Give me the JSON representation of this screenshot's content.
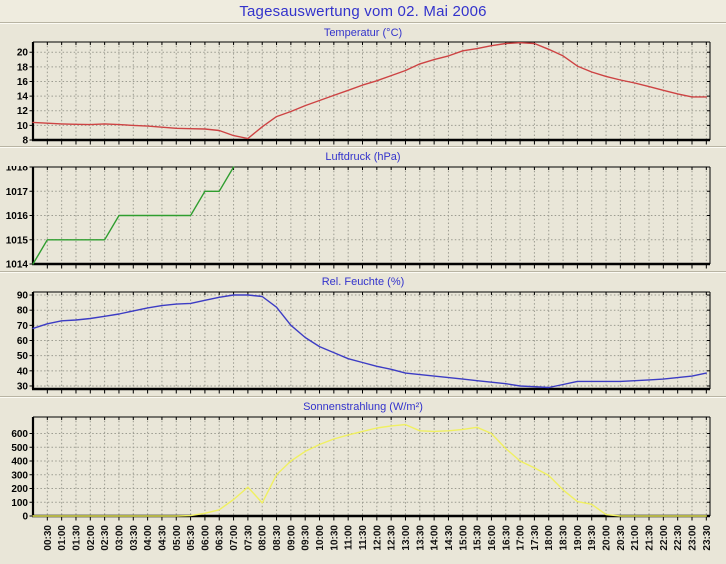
{
  "page": {
    "title": "Tagesauswertung vom 02. Mai 2006"
  },
  "colors": {
    "title_blue": "#3333cc",
    "background": "#e9e6d8",
    "header_background": "#efecdf",
    "grid": "#9b9b90",
    "axis": "#000000",
    "temperature_line": "#cd4343",
    "pressure_line": "#2f9e2f",
    "humidity_line": "#3c3cc4",
    "radiation_line": "#f0f060"
  },
  "x_axis": {
    "start_label": "00:30",
    "end_label": "23:30",
    "labels": [
      "00:30",
      "01:00",
      "01:30",
      "02:00",
      "02:30",
      "03:00",
      "03:30",
      "04:00",
      "04:30",
      "05:00",
      "05:30",
      "06:00",
      "06:30",
      "07:00",
      "07:30",
      "08:00",
      "08:30",
      "09:00",
      "09:30",
      "10:00",
      "10:30",
      "11:00",
      "11:30",
      "12:00",
      "12:30",
      "13:00",
      "13:30",
      "14:00",
      "14:30",
      "15:00",
      "15:30",
      "16:00",
      "16:30",
      "17:00",
      "17:30",
      "18:00",
      "18:30",
      "19:00",
      "19:30",
      "20:00",
      "20:30",
      "21:00",
      "21:30",
      "22:00",
      "22:30",
      "23:00",
      "23:30"
    ]
  },
  "chart_data": [
    {
      "type": "line",
      "title": "Temperatur (°C)",
      "unit": "°C",
      "color": "#cd4343",
      "y_ticks": [
        8,
        10,
        12,
        14,
        16,
        18,
        20
      ],
      "ylim": [
        8,
        21.4
      ],
      "x_start": "00:00",
      "x_step_minutes": 30,
      "values": [
        10.4,
        10.3,
        10.2,
        10.15,
        10.1,
        10.2,
        10.1,
        10.0,
        9.9,
        9.75,
        9.6,
        9.55,
        9.5,
        9.3,
        8.6,
        8.2,
        9.8,
        11.2,
        11.9,
        12.7,
        13.4,
        14.1,
        14.8,
        15.5,
        16.1,
        16.8,
        17.5,
        18.4,
        19.0,
        19.5,
        20.2,
        20.5,
        20.9,
        21.2,
        21.3,
        21.2,
        20.4,
        19.5,
        18.1,
        17.3,
        16.7,
        16.2,
        15.8,
        15.3,
        14.8,
        14.3,
        13.9,
        13.9
      ]
    },
    {
      "type": "line",
      "title": "Luftdruck (hPa)",
      "unit": "hPa",
      "color": "#2f9e2f",
      "y_ticks": [
        1014,
        1015,
        1016,
        1017,
        1018
      ],
      "ylim": [
        1014,
        1018
      ],
      "x_start": "00:00",
      "x_step_minutes": 30,
      "values": [
        1014,
        1015,
        1015,
        1015,
        1015,
        1015,
        1016,
        1016,
        1016,
        1016,
        1016,
        1016,
        1017,
        1017,
        1018,
        null,
        null,
        null,
        null,
        null,
        null,
        null,
        null,
        null,
        null,
        null,
        null,
        null,
        null,
        null,
        null,
        null,
        null,
        null,
        null,
        null,
        null,
        null,
        null,
        null,
        null,
        null,
        null,
        null,
        null,
        null,
        null,
        null
      ]
    },
    {
      "type": "line",
      "title": "Rel. Feuchte (%)",
      "unit": "%",
      "color": "#3c3cc4",
      "y_ticks": [
        30,
        40,
        50,
        60,
        70,
        80,
        90
      ],
      "ylim": [
        28,
        92
      ],
      "x_start": "00:00",
      "x_step_minutes": 30,
      "values": [
        68,
        71,
        73,
        73.5,
        74.5,
        76,
        77.5,
        79.5,
        81.5,
        83,
        84,
        84.5,
        86.5,
        88.5,
        90,
        90,
        89,
        82,
        70,
        62,
        56,
        52,
        48,
        45.5,
        43,
        41,
        38.5,
        37.5,
        36.5,
        35.5,
        34.5,
        33.5,
        32.5,
        31.5,
        30,
        29.5,
        29,
        31,
        33,
        33,
        33,
        33,
        33.5,
        34,
        34.5,
        35.5,
        36.5,
        38.5
      ]
    },
    {
      "type": "line",
      "title": "Sonnenstrahlung (W/m²)",
      "unit": "W/m²",
      "color": "#f0f060",
      "y_ticks": [
        0,
        100,
        200,
        300,
        400,
        500,
        600
      ],
      "ylim": [
        0,
        720
      ],
      "x_start": "00:00",
      "x_step_minutes": 30,
      "values": [
        0,
        0,
        0,
        0,
        0,
        0,
        0,
        0,
        0,
        0,
        0,
        3,
        20,
        45,
        120,
        210,
        95,
        300,
        400,
        470,
        520,
        560,
        590,
        615,
        640,
        655,
        665,
        620,
        615,
        620,
        630,
        645,
        600,
        490,
        400,
        350,
        295,
        190,
        105,
        85,
        10,
        0,
        0,
        0,
        0,
        0,
        0,
        0
      ]
    }
  ]
}
